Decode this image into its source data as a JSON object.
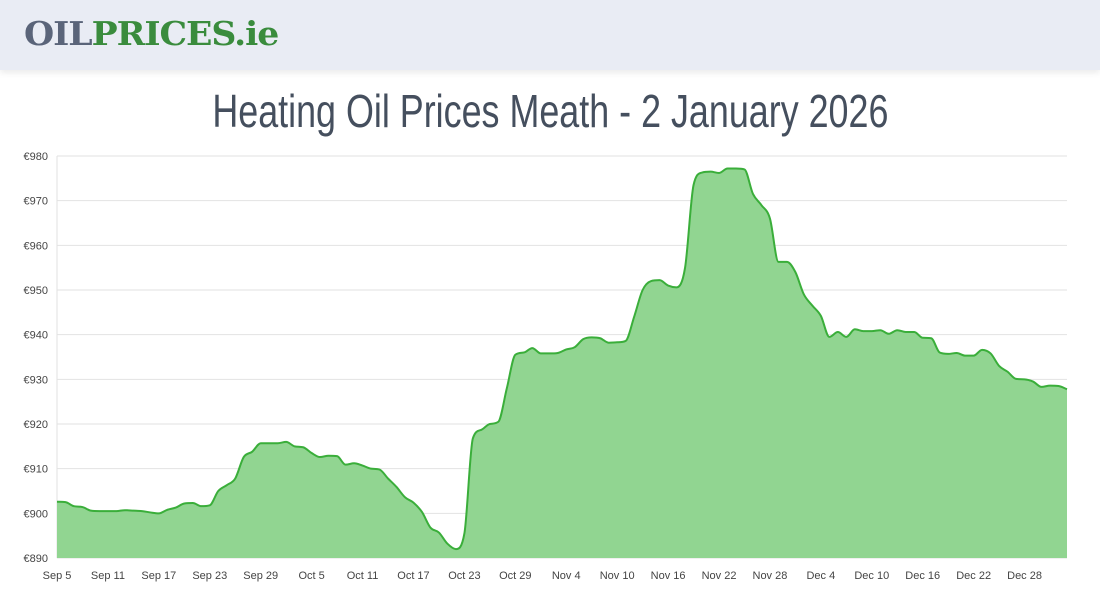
{
  "header": {
    "logo_part1": "OIL",
    "logo_part2": "PRICES.ie"
  },
  "title": "Heating Oil Prices Meath - 2 January 2026",
  "colors": {
    "line": "#3aae3a",
    "fill": "#91d591",
    "grid": "#e2e2e2",
    "logo_grey": "#5a6479",
    "logo_green": "#3a8c3d",
    "title": "#454f5e"
  },
  "chart_data": {
    "type": "area",
    "title": "",
    "xlabel": "",
    "ylabel": "",
    "ylim": [
      890,
      980
    ],
    "grid": true,
    "y_ticks": [
      "€890",
      "€900",
      "€910",
      "€920",
      "€930",
      "€940",
      "€950",
      "€960",
      "€970",
      "€980"
    ],
    "x_ticks": [
      "Sep 5",
      "Sep 11",
      "Sep 17",
      "Sep 23",
      "Sep 29",
      "Oct 5",
      "Oct 11",
      "Oct 17",
      "Oct 23",
      "Oct 29",
      "Nov 4",
      "Nov 10",
      "Nov 16",
      "Nov 22",
      "Nov 28",
      "Dec 4",
      "Dec 10",
      "Dec 16",
      "Dec 22",
      "Dec 28"
    ],
    "categories": [
      "Sep 5",
      "Sep 6",
      "Sep 7",
      "Sep 8",
      "Sep 9",
      "Sep 10",
      "Sep 11",
      "Sep 12",
      "Sep 13",
      "Sep 14",
      "Sep 15",
      "Sep 16",
      "Sep 17",
      "Sep 18",
      "Sep 19",
      "Sep 20",
      "Sep 21",
      "Sep 22",
      "Sep 23",
      "Sep 24",
      "Sep 25",
      "Sep 26",
      "Sep 27",
      "Sep 28",
      "Sep 29",
      "Sep 30",
      "Oct 1",
      "Oct 2",
      "Oct 3",
      "Oct 4",
      "Oct 5",
      "Oct 6",
      "Oct 7",
      "Oct 8",
      "Oct 9",
      "Oct 10",
      "Oct 11",
      "Oct 12",
      "Oct 13",
      "Oct 14",
      "Oct 15",
      "Oct 16",
      "Oct 17",
      "Oct 18",
      "Oct 19",
      "Oct 20",
      "Oct 21",
      "Oct 22",
      "Oct 23",
      "Oct 24",
      "Oct 25",
      "Oct 26",
      "Oct 27",
      "Oct 28",
      "Oct 29",
      "Oct 30",
      "Oct 31",
      "Nov 1",
      "Nov 2",
      "Nov 3",
      "Nov 4",
      "Nov 5",
      "Nov 6",
      "Nov 7",
      "Nov 8",
      "Nov 9",
      "Nov 10",
      "Nov 11",
      "Nov 12",
      "Nov 13",
      "Nov 14",
      "Nov 15",
      "Nov 16",
      "Nov 17",
      "Nov 18",
      "Nov 19",
      "Nov 20",
      "Nov 21",
      "Nov 22",
      "Nov 23",
      "Nov 24",
      "Nov 25",
      "Nov 26",
      "Nov 27",
      "Nov 28",
      "Nov 29",
      "Nov 30",
      "Dec 1",
      "Dec 2",
      "Dec 3",
      "Dec 4",
      "Dec 5",
      "Dec 6",
      "Dec 7",
      "Dec 8",
      "Dec 9",
      "Dec 10",
      "Dec 11",
      "Dec 12",
      "Dec 13",
      "Dec 14",
      "Dec 15",
      "Dec 16",
      "Dec 17",
      "Dec 18",
      "Dec 19",
      "Dec 20",
      "Dec 21",
      "Dec 22",
      "Dec 23",
      "Dec 24",
      "Dec 25",
      "Dec 26",
      "Dec 27",
      "Dec 28",
      "Dec 29",
      "Dec 30",
      "Dec 31",
      "Jan 1",
      "Jan 2"
    ],
    "values": [
      902.6,
      902.5,
      901.6,
      901.4,
      900.6,
      900.5,
      900.5,
      900.5,
      900.7,
      900.6,
      900.5,
      900.2,
      900.0,
      900.8,
      901.3,
      902.2,
      902.3,
      901.6,
      901.8,
      905.0,
      906.3,
      907.8,
      912.6,
      913.8,
      915.7,
      915.7,
      915.7,
      916.0,
      915.0,
      914.8,
      913.5,
      912.6,
      912.9,
      912.8,
      910.9,
      911.2,
      910.7,
      910.0,
      909.8,
      907.8,
      905.9,
      903.6,
      902.4,
      900.3,
      896.8,
      895.7,
      893.2,
      892.0,
      895.5,
      916.8,
      918.7,
      920.0,
      920.5,
      928.0,
      935.5,
      936.0,
      937.0,
      935.8,
      935.8,
      935.9,
      936.7,
      937.2,
      939.0,
      939.4,
      939.2,
      938.2,
      938.3,
      938.6,
      944.0,
      950.0,
      952.0,
      952.2,
      951.0,
      950.6,
      955.0,
      973.5,
      976.3,
      976.5,
      976.2,
      977.2,
      977.2,
      977.0,
      971.5,
      969.0,
      966.0,
      956.3,
      956.3,
      954.0,
      949.0,
      946.5,
      944.2,
      939.5,
      940.6,
      939.5,
      941.2,
      940.8,
      940.8,
      941.0,
      940.2,
      941.0,
      940.6,
      940.6,
      939.3,
      939.2,
      936.0,
      935.7,
      935.9,
      935.3,
      935.3,
      936.6,
      935.8,
      933.0,
      931.7,
      930.1,
      930.0,
      929.5,
      928.3,
      928.6,
      928.5,
      927.8
    ]
  }
}
